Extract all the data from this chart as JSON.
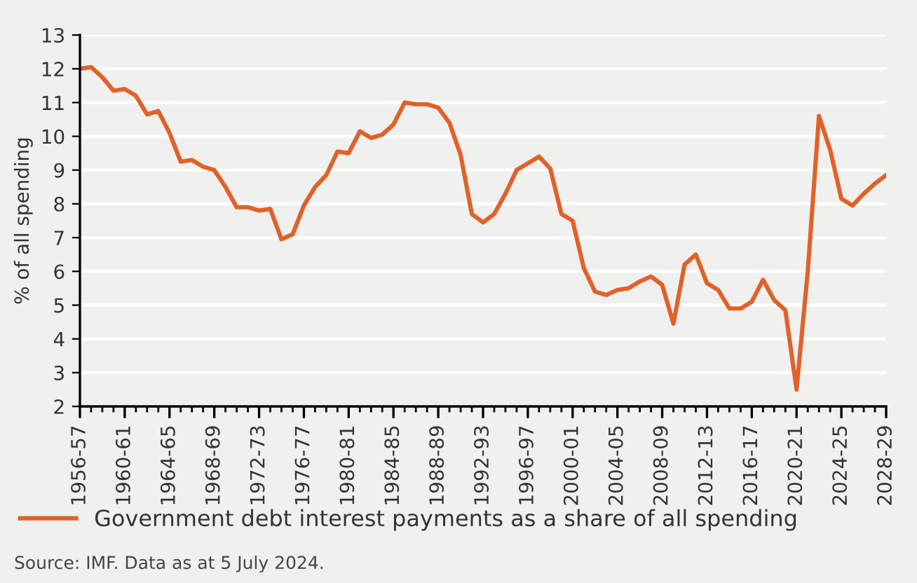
{
  "chart_data": {
    "type": "line",
    "ylabel": "% of all spending",
    "categories": [
      "1956-57",
      null,
      null,
      null,
      "1960-61",
      null,
      null,
      null,
      "1964-65",
      null,
      null,
      null,
      "1968-69",
      null,
      null,
      null,
      "1972-73",
      null,
      null,
      null,
      "1976-77",
      null,
      null,
      null,
      "1980-81",
      null,
      null,
      null,
      "1984-85",
      null,
      null,
      null,
      "1988-89",
      null,
      null,
      null,
      "1992-93",
      null,
      null,
      null,
      "1996-97",
      null,
      null,
      null,
      "2000-01",
      null,
      null,
      null,
      "2004-05",
      null,
      null,
      null,
      "2008-09",
      null,
      null,
      null,
      "2012-13",
      null,
      null,
      null,
      "2016-17",
      null,
      null,
      null,
      "2020-21",
      null,
      null,
      null,
      "2024-25",
      null,
      null,
      null,
      "2028-29"
    ],
    "series": [
      {
        "name": "Government debt interest payments as a share of all spending",
        "color": "#e0622a",
        "values": [
          12.0,
          12.05,
          11.75,
          11.35,
          11.4,
          11.2,
          10.65,
          10.75,
          10.1,
          9.25,
          9.3,
          9.1,
          9.0,
          8.5,
          7.9,
          7.9,
          7.8,
          7.85,
          6.95,
          7.1,
          7.95,
          8.5,
          8.85,
          9.55,
          9.5,
          10.15,
          9.95,
          10.05,
          10.35,
          11.0,
          10.95,
          10.95,
          10.85,
          10.4,
          9.45,
          7.7,
          7.45,
          7.7,
          8.3,
          9.0,
          9.2,
          9.4,
          9.05,
          7.7,
          7.5,
          6.1,
          5.4,
          5.3,
          5.45,
          5.5,
          5.7,
          5.85,
          5.6,
          4.45,
          6.2,
          6.5,
          5.65,
          5.45,
          4.9,
          4.9,
          5.1,
          5.75,
          5.15,
          4.85,
          2.5,
          6.0,
          10.6,
          9.6,
          8.15,
          7.95,
          8.3,
          8.6,
          8.85
        ]
      }
    ],
    "ylim": [
      2,
      13
    ],
    "yticks": [
      2,
      3,
      4,
      5,
      6,
      7,
      8,
      9,
      10,
      11,
      12,
      13
    ],
    "grid": "y",
    "legend": "bottom",
    "line_style": "solid",
    "marker": "none",
    "annotations": [
      "Source: IMF. Data as at 5 July 2024."
    ]
  }
}
